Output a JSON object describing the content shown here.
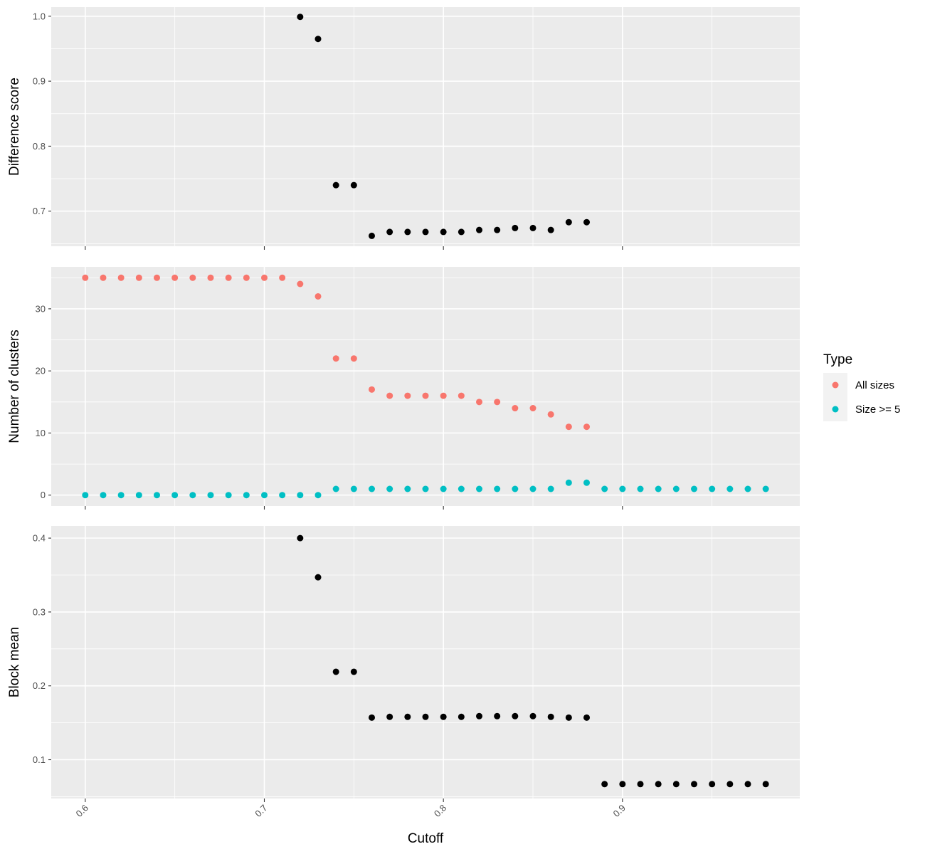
{
  "chart_data": {
    "type": "scatter",
    "xlabel": "Cutoff",
    "xlim": [
      0.581,
      0.999
    ],
    "x_ticks": [
      0.6,
      0.7,
      0.8,
      0.9
    ],
    "x_tick_labels": [
      "0.6",
      "0.7",
      "0.8",
      "0.9"
    ],
    "grid": true,
    "legend": {
      "title": "Type",
      "placement": "right",
      "entries": [
        {
          "label": "All sizes",
          "color": "#F8766D"
        },
        {
          "label": "Size >= 5",
          "color": "#00BFC4"
        }
      ]
    },
    "panels": [
      {
        "ylabel": "Difference score",
        "ylim": [
          0.646,
          1.014
        ],
        "y_ticks": [
          0.7,
          0.8,
          0.9,
          1.0
        ],
        "y_tick_labels": [
          "0.7",
          "0.8",
          "0.9",
          "1.0"
        ],
        "series": [
          {
            "color": "#000000",
            "x": [
              0.72,
              0.73,
              0.74,
              0.75,
              0.76,
              0.77,
              0.78,
              0.79,
              0.8,
              0.81,
              0.82,
              0.83,
              0.84,
              0.85,
              0.86,
              0.87,
              0.88
            ],
            "y": [
              0.999,
              0.965,
              0.74,
              0.74,
              0.662,
              0.668,
              0.668,
              0.668,
              0.668,
              0.668,
              0.671,
              0.671,
              0.674,
              0.674,
              0.671,
              0.683,
              0.683
            ]
          }
        ]
      },
      {
        "ylabel": "Number of clusters",
        "ylim": [
          -1.75,
          36.75
        ],
        "y_ticks": [
          0,
          10,
          20,
          30
        ],
        "y_tick_labels": [
          "0",
          "10",
          "20",
          "30"
        ],
        "series": [
          {
            "name": "All sizes",
            "color": "#F8766D",
            "x": [
              0.6,
              0.61,
              0.62,
              0.63,
              0.64,
              0.65,
              0.66,
              0.67,
              0.68,
              0.69,
              0.7,
              0.71,
              0.72,
              0.73,
              0.74,
              0.75,
              0.76,
              0.77,
              0.78,
              0.79,
              0.8,
              0.81,
              0.82,
              0.83,
              0.84,
              0.85,
              0.86,
              0.87,
              0.88
            ],
            "y": [
              35,
              35,
              35,
              35,
              35,
              35,
              35,
              35,
              35,
              35,
              35,
              35,
              34,
              32,
              22,
              22,
              17,
              16,
              16,
              16,
              16,
              16,
              15,
              15,
              14,
              14,
              13,
              11,
              11
            ]
          },
          {
            "name": "Size >= 5",
            "color": "#00BFC4",
            "x": [
              0.6,
              0.61,
              0.62,
              0.63,
              0.64,
              0.65,
              0.66,
              0.67,
              0.68,
              0.69,
              0.7,
              0.71,
              0.72,
              0.73,
              0.74,
              0.75,
              0.76,
              0.77,
              0.78,
              0.79,
              0.8,
              0.81,
              0.82,
              0.83,
              0.84,
              0.85,
              0.86,
              0.87,
              0.88,
              0.89,
              0.9,
              0.91,
              0.92,
              0.93,
              0.94,
              0.95,
              0.96,
              0.97,
              0.98
            ],
            "y": [
              0,
              0,
              0,
              0,
              0,
              0,
              0,
              0,
              0,
              0,
              0,
              0,
              0,
              0,
              1,
              1,
              1,
              1,
              1,
              1,
              1,
              1,
              1,
              1,
              1,
              1,
              1,
              2,
              2,
              1,
              1,
              1,
              1,
              1,
              1,
              1,
              1,
              1,
              1
            ]
          }
        ]
      },
      {
        "ylabel": "Block mean",
        "ylim": [
          0.0475,
          0.4165
        ],
        "y_ticks": [
          0.1,
          0.2,
          0.3,
          0.4
        ],
        "y_tick_labels": [
          "0.1",
          "0.2",
          "0.3",
          "0.4"
        ],
        "series": [
          {
            "color": "#000000",
            "x": [
              0.72,
              0.73,
              0.74,
              0.75,
              0.76,
              0.77,
              0.78,
              0.79,
              0.8,
              0.81,
              0.82,
              0.83,
              0.84,
              0.85,
              0.86,
              0.87,
              0.88,
              0.89,
              0.9,
              0.91,
              0.92,
              0.93,
              0.94,
              0.95,
              0.96,
              0.97,
              0.98
            ],
            "y": [
              0.4,
              0.347,
              0.219,
              0.219,
              0.157,
              0.158,
              0.158,
              0.158,
              0.158,
              0.158,
              0.159,
              0.159,
              0.159,
              0.159,
              0.158,
              0.157,
              0.157,
              0.067,
              0.067,
              0.067,
              0.067,
              0.067,
              0.067,
              0.067,
              0.067,
              0.067,
              0.067
            ]
          }
        ]
      }
    ]
  }
}
